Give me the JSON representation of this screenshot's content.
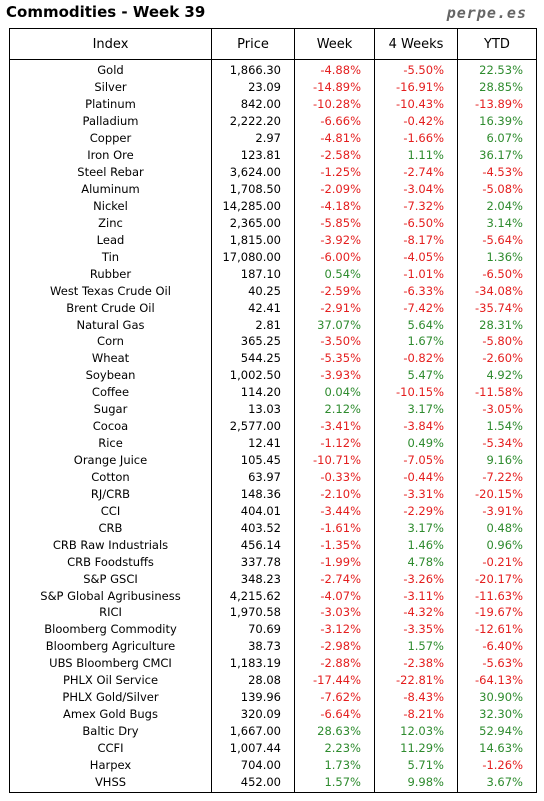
{
  "header": {
    "title": "Commodities - Week 39",
    "site": "perpe.es"
  },
  "colors": {
    "negative": "#e41e1e",
    "positive": "#2e8b2e",
    "text": "#000000"
  },
  "columns": [
    "Index",
    "Price",
    "Week",
    "4 Weeks",
    "YTD"
  ],
  "rows": [
    {
      "name": "Gold",
      "price": "1,866.30",
      "week": "-4.88%",
      "w4": "-5.50%",
      "ytd": "22.53%"
    },
    {
      "name": "Silver",
      "price": "23.09",
      "week": "-14.89%",
      "w4": "-16.91%",
      "ytd": "28.85%"
    },
    {
      "name": "Platinum",
      "price": "842.00",
      "week": "-10.28%",
      "w4": "-10.43%",
      "ytd": "-13.89%"
    },
    {
      "name": "Palladium",
      "price": "2,222.20",
      "week": "-6.66%",
      "w4": "-0.42%",
      "ytd": "16.39%"
    },
    {
      "name": "Copper",
      "price": "2.97",
      "week": "-4.81%",
      "w4": "-1.66%",
      "ytd": "6.07%"
    },
    {
      "name": "Iron Ore",
      "price": "123.81",
      "week": "-2.58%",
      "w4": "1.11%",
      "ytd": "36.17%"
    },
    {
      "name": "Steel Rebar",
      "price": "3,624.00",
      "week": "-1.25%",
      "w4": "-2.74%",
      "ytd": "-4.53%"
    },
    {
      "name": "Aluminum",
      "price": "1,708.50",
      "week": "-2.09%",
      "w4": "-3.04%",
      "ytd": "-5.08%"
    },
    {
      "name": "Nickel",
      "price": "14,285.00",
      "week": "-4.18%",
      "w4": "-7.32%",
      "ytd": "2.04%"
    },
    {
      "name": "Zinc",
      "price": "2,365.00",
      "week": "-5.85%",
      "w4": "-6.50%",
      "ytd": "3.14%"
    },
    {
      "name": "Lead",
      "price": "1,815.00",
      "week": "-3.92%",
      "w4": "-8.17%",
      "ytd": "-5.64%"
    },
    {
      "name": "Tin",
      "price": "17,080.00",
      "week": "-6.00%",
      "w4": "-4.05%",
      "ytd": "1.36%"
    },
    {
      "name": "Rubber",
      "price": "187.10",
      "week": "0.54%",
      "w4": "-1.01%",
      "ytd": "-6.50%"
    },
    {
      "name": "West Texas Crude Oil",
      "price": "40.25",
      "week": "-2.59%",
      "w4": "-6.33%",
      "ytd": "-34.08%"
    },
    {
      "name": "Brent Crude Oil",
      "price": "42.41",
      "week": "-2.91%",
      "w4": "-7.42%",
      "ytd": "-35.74%"
    },
    {
      "name": "Natural Gas",
      "price": "2.81",
      "week": "37.07%",
      "w4": "5.64%",
      "ytd": "28.31%"
    },
    {
      "name": "Corn",
      "price": "365.25",
      "week": "-3.50%",
      "w4": "1.67%",
      "ytd": "-5.80%"
    },
    {
      "name": "Wheat",
      "price": "544.25",
      "week": "-5.35%",
      "w4": "-0.82%",
      "ytd": "-2.60%"
    },
    {
      "name": "Soybean",
      "price": "1,002.50",
      "week": "-3.93%",
      "w4": "5.47%",
      "ytd": "4.92%"
    },
    {
      "name": "Coffee",
      "price": "114.20",
      "week": "0.04%",
      "w4": "-10.15%",
      "ytd": "-11.58%"
    },
    {
      "name": "Sugar",
      "price": "13.03",
      "week": "2.12%",
      "w4": "3.17%",
      "ytd": "-3.05%"
    },
    {
      "name": "Cocoa",
      "price": "2,577.00",
      "week": "-3.41%",
      "w4": "-3.84%",
      "ytd": "1.54%"
    },
    {
      "name": "Rice",
      "price": "12.41",
      "week": "-1.12%",
      "w4": "0.49%",
      "ytd": "-5.34%"
    },
    {
      "name": "Orange Juice",
      "price": "105.45",
      "week": "-10.71%",
      "w4": "-7.05%",
      "ytd": "9.16%"
    },
    {
      "name": "Cotton",
      "price": "63.97",
      "week": "-0.33%",
      "w4": "-0.44%",
      "ytd": "-7.22%"
    },
    {
      "name": "RJ/CRB",
      "price": "148.36",
      "week": "-2.10%",
      "w4": "-3.31%",
      "ytd": "-20.15%"
    },
    {
      "name": "CCI",
      "price": "404.01",
      "week": "-3.44%",
      "w4": "-2.29%",
      "ytd": "-3.91%"
    },
    {
      "name": "CRB",
      "price": "403.52",
      "week": "-1.61%",
      "w4": "3.17%",
      "ytd": "0.48%"
    },
    {
      "name": "CRB Raw Industrials",
      "price": "456.14",
      "week": "-1.35%",
      "w4": "1.46%",
      "ytd": "0.96%"
    },
    {
      "name": "CRB Foodstuffs",
      "price": "337.78",
      "week": "-1.99%",
      "w4": "4.78%",
      "ytd": "-0.21%"
    },
    {
      "name": "S&P GSCI",
      "price": "348.23",
      "week": "-2.74%",
      "w4": "-3.26%",
      "ytd": "-20.17%"
    },
    {
      "name": "S&P Global Agribusiness",
      "price": "4,215.62",
      "week": "-4.07%",
      "w4": "-3.11%",
      "ytd": "-11.63%"
    },
    {
      "name": "RICI",
      "price": "1,970.58",
      "week": "-3.03%",
      "w4": "-4.32%",
      "ytd": "-19.67%"
    },
    {
      "name": "Bloomberg Commodity",
      "price": "70.69",
      "week": "-3.12%",
      "w4": "-3.35%",
      "ytd": "-12.61%"
    },
    {
      "name": "Bloomberg Agriculture",
      "price": "38.73",
      "week": "-2.98%",
      "w4": "1.57%",
      "ytd": "-6.40%"
    },
    {
      "name": "UBS Bloomberg CMCI",
      "price": "1,183.19",
      "week": "-2.88%",
      "w4": "-2.38%",
      "ytd": "-5.63%"
    },
    {
      "name": "PHLX Oil Service",
      "price": "28.08",
      "week": "-17.44%",
      "w4": "-22.81%",
      "ytd": "-64.13%"
    },
    {
      "name": "PHLX Gold/Silver",
      "price": "139.96",
      "week": "-7.62%",
      "w4": "-8.43%",
      "ytd": "30.90%"
    },
    {
      "name": "Amex Gold Bugs",
      "price": "320.09",
      "week": "-6.64%",
      "w4": "-8.21%",
      "ytd": "32.30%"
    },
    {
      "name": "Baltic Dry",
      "price": "1,667.00",
      "week": "28.63%",
      "w4": "12.03%",
      "ytd": "52.94%"
    },
    {
      "name": "CCFI",
      "price": "1,007.44",
      "week": "2.23%",
      "w4": "11.29%",
      "ytd": "14.63%"
    },
    {
      "name": "Harpex",
      "price": "704.00",
      "week": "1.73%",
      "w4": "5.71%",
      "ytd": "-1.26%"
    },
    {
      "name": "VHSS",
      "price": "452.00",
      "week": "1.57%",
      "w4": "9.98%",
      "ytd": "3.67%"
    }
  ]
}
